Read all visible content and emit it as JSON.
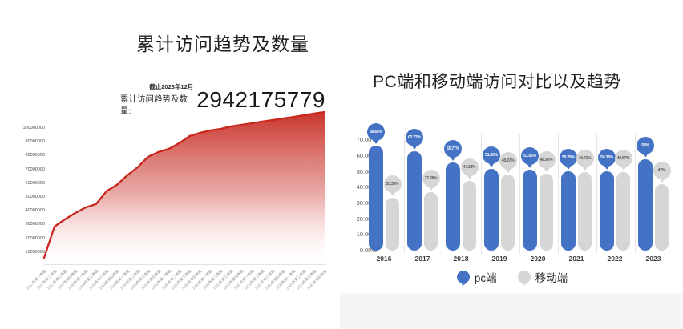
{
  "left_chart": {
    "title": "累计访问趋势及数量",
    "as_of": "截止2023年12月",
    "stat_label": "累计访问趋势及数量:",
    "total": "2942175779",
    "line_color": "#c9261c"
  },
  "right_chart": {
    "title": "PC端和移动端访问对比以及趋势",
    "legend": [
      {
        "label": "pc端",
        "color": "#4472c4"
      },
      {
        "label": "移动端",
        "color": "#d6d6d6"
      }
    ]
  },
  "chart_data": [
    {
      "type": "area",
      "title": "累计访问趋势及数量",
      "x": [
        "2017年第一季度",
        "2017年第二季度",
        "2017年第三季度",
        "2017年第四季度",
        "2018年第一季度",
        "2018年第二季度",
        "2018年第三季度",
        "2018年第四季度",
        "2019年第一季度",
        "2019年第二季度",
        "2019年第三季度",
        "2019年第四季度",
        "2020年第一季度",
        "2020年第二季度",
        "2020年第三季度",
        "2020年第四季度",
        "2021年第一季度",
        "2021年第二季度",
        "2021年第三季度",
        "2021年第四季度",
        "2022年第一季度",
        "2022年第二季度",
        "2022年第三季度",
        "2022年第四季度",
        "2023年第一季度",
        "2023年第二季度",
        "2023年第三季度",
        "2023年第四季度"
      ],
      "values": [
        5800000,
        28500000,
        33700000,
        38400000,
        42400000,
        44800000,
        54100000,
        58700000,
        65700000,
        71500000,
        79100000,
        82600000,
        84900000,
        89000000,
        94200000,
        96500000,
        98300000,
        99400000,
        101200000,
        102300000,
        103500000,
        104700000,
        105800000,
        107000000,
        108100000,
        109300000,
        110500000,
        111600000
      ],
      "yticks": [
        10000000,
        20000000,
        30000000,
        40000000,
        50000000,
        60000000,
        70000000,
        80000000,
        90000000,
        100000000
      ],
      "ylim": [
        0,
        100000000
      ],
      "grid": false,
      "annotation": {
        "note": "截止2023年12月",
        "label": "累计访问趋势及数量:",
        "value": "2942175779"
      },
      "line_color": "#c9261c",
      "fill": "red-to-white vertical fade"
    },
    {
      "type": "bar",
      "categories": [
        "2016",
        "2017",
        "2018",
        "2019",
        "2020",
        "2021",
        "2022",
        "2023"
      ],
      "series": [
        {
          "name": "pc端",
          "color": "#4472c4",
          "label_text_color": "#ffffff",
          "values": [
            66.65,
            62.72,
            55.77,
            51.63,
            51.05,
            50.29,
            50.33,
            58
          ],
          "labels": [
            "66.65%",
            "62.72%",
            "55.77%",
            "51.63%",
            "51.05%",
            "50.29%",
            "50.33%",
            "58%"
          ]
        },
        {
          "name": "移动端",
          "color": "#d6d6d6",
          "label_text_color": "#595959",
          "values": [
            33.35,
            37.28,
            44.23,
            48.37,
            48.95,
            49.71,
            49.67,
            42
          ],
          "labels": [
            "33.35%",
            "37.28%",
            "44.23%",
            "48.37%",
            "48.95%",
            "49.71%",
            "49.67%",
            "42%"
          ]
        }
      ],
      "yticks": [
        "0.00%",
        "10.00%",
        "20.00%",
        "30.00%",
        "40.00%",
        "50.00%",
        "60.00%",
        "70.00%"
      ],
      "ytick_values": [
        0,
        10,
        20,
        30,
        40,
        50,
        60,
        70
      ],
      "ylim": [
        0,
        70
      ],
      "grid": false,
      "legend_position": "bottom",
      "title": "PC端和移动端访问对比以及趋势"
    }
  ]
}
